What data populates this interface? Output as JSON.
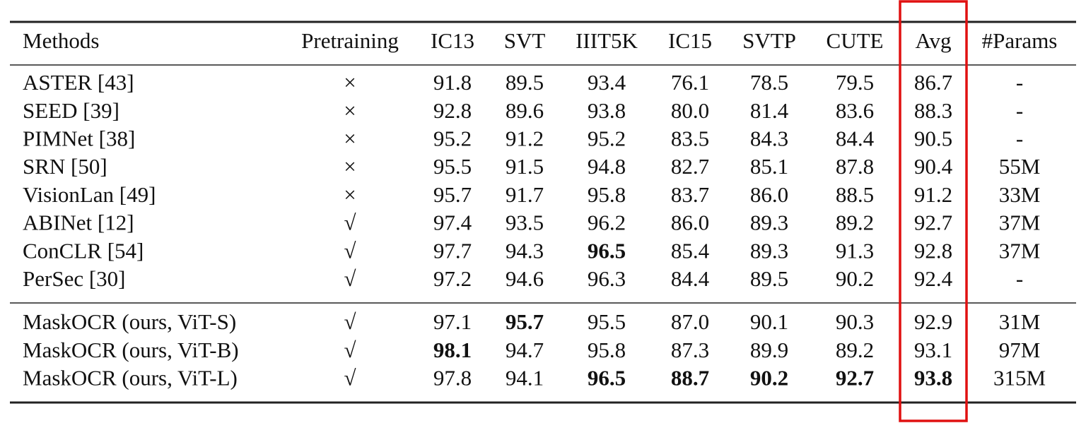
{
  "table": {
    "header": [
      "Methods",
      "Pretraining",
      "IC13",
      "SVT",
      "IIIT5K",
      "IC15",
      "SVTP",
      "CUTE",
      "Avg",
      "#Params"
    ],
    "groups": [
      [
        [
          "ASTER [43]",
          "×",
          "91.8",
          "89.5",
          "93.4",
          "76.1",
          "78.5",
          "79.5",
          "86.7",
          "-"
        ],
        [
          "SEED [39]",
          "×",
          "92.8",
          "89.6",
          "93.8",
          "80.0",
          "81.4",
          "83.6",
          "88.3",
          "-"
        ],
        [
          "PIMNet [38]",
          "×",
          "95.2",
          "91.2",
          "95.2",
          "83.5",
          "84.3",
          "84.4",
          "90.5",
          "-"
        ],
        [
          "SRN [50]",
          "×",
          "95.5",
          "91.5",
          "94.8",
          "82.7",
          "85.1",
          "87.8",
          "90.4",
          "55M"
        ],
        [
          "VisionLan [49]",
          "×",
          "95.7",
          "91.7",
          "95.8",
          "83.7",
          "86.0",
          "88.5",
          "91.2",
          "33M"
        ],
        [
          "ABINet [12]",
          "√",
          "97.4",
          "93.5",
          "96.2",
          "86.0",
          "89.3",
          "89.2",
          "92.7",
          "37M"
        ],
        [
          "ConCLR [54]",
          "√",
          "97.7",
          "94.3",
          "96.5",
          "85.4",
          "89.3",
          "91.3",
          "92.8",
          "37M"
        ],
        [
          "PerSec [30]",
          "√",
          "97.2",
          "94.6",
          "96.3",
          "84.4",
          "89.5",
          "90.2",
          "92.4",
          "-"
        ]
      ],
      [
        [
          "MaskOCR (ours, ViT-S)",
          "√",
          "97.1",
          "95.7",
          "95.5",
          "87.0",
          "90.1",
          "90.3",
          "92.9",
          "31M"
        ],
        [
          "MaskOCR (ours, ViT-B)",
          "√",
          "98.1",
          "94.7",
          "95.8",
          "87.3",
          "89.9",
          "89.2",
          "93.1",
          "97M"
        ],
        [
          "MaskOCR (ours, ViT-L)",
          "√",
          "97.8",
          "94.1",
          "96.5",
          "88.7",
          "90.2",
          "92.7",
          "93.8",
          "315M"
        ]
      ]
    ],
    "bold": [
      [
        0,
        6,
        4
      ],
      [
        1,
        0,
        3
      ],
      [
        1,
        1,
        2
      ],
      [
        1,
        2,
        4
      ],
      [
        1,
        2,
        5
      ],
      [
        1,
        2,
        6
      ],
      [
        1,
        2,
        7
      ],
      [
        1,
        2,
        8
      ]
    ],
    "highlight_column": 8,
    "highlight_color": "#e01010"
  }
}
